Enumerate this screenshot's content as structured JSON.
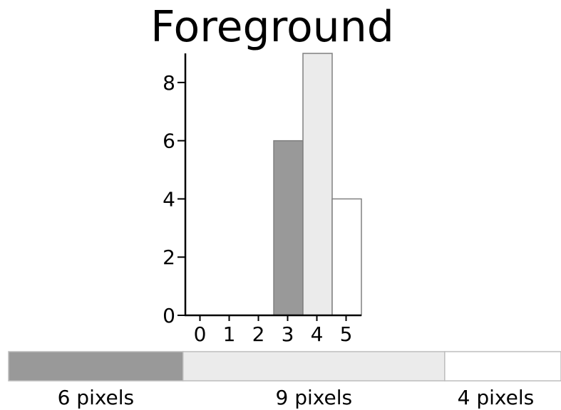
{
  "chart_data": {
    "type": "bar",
    "title": "Foreground",
    "xlabel": "",
    "ylabel": "",
    "categories": [
      "0",
      "1",
      "2",
      "3",
      "4",
      "5"
    ],
    "values": [
      0,
      0,
      0,
      6,
      9,
      4
    ],
    "colors": [
      "#999999",
      "#999999",
      "#999999",
      "#999999",
      "#ebebeb",
      "#ffffff"
    ],
    "ylim": [
      0,
      9
    ],
    "yticks": [
      0,
      2,
      4,
      6,
      8
    ],
    "grid": false,
    "legend": "none",
    "proportion_bar": {
      "segments": [
        {
          "value": 6,
          "label": "6 pixels",
          "color": "#999999"
        },
        {
          "value": 9,
          "label": "9 pixels",
          "color": "#ebebeb"
        },
        {
          "value": 4,
          "label": "4 pixels",
          "color": "#ffffff"
        }
      ]
    }
  }
}
